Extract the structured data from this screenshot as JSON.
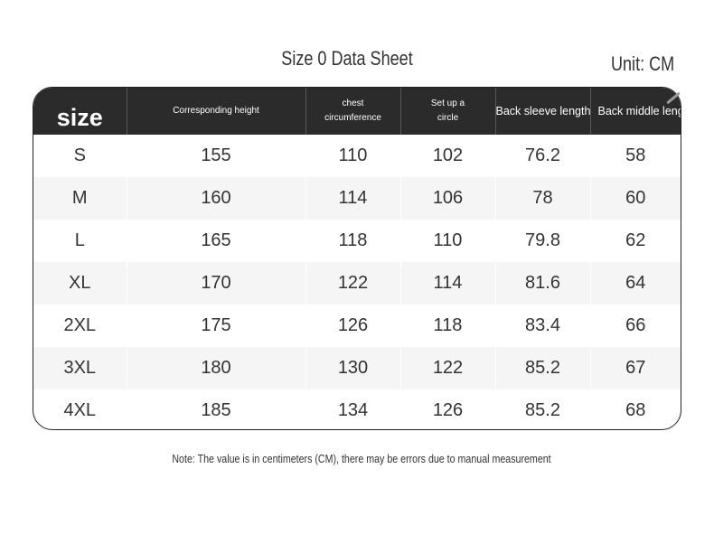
{
  "title": "Size 0 Data Sheet",
  "unit": "Unit: CM",
  "columns": [
    "size",
    "Corresponding height",
    "chest circumference",
    "Set up a circle",
    "Back sleeve length",
    "Back middle length"
  ],
  "rows": [
    [
      "S",
      "155",
      "110",
      "102",
      "76.2",
      "58"
    ],
    [
      "M",
      "160",
      "114",
      "106",
      "78",
      "60"
    ],
    [
      "L",
      "165",
      "118",
      "110",
      "79.8",
      "62"
    ],
    [
      "XL",
      "170",
      "122",
      "114",
      "81.6",
      "64"
    ],
    [
      "2XL",
      "175",
      "126",
      "118",
      "83.4",
      "66"
    ],
    [
      "3XL",
      "180",
      "130",
      "122",
      "85.2",
      "67"
    ],
    [
      "4XL",
      "185",
      "134",
      "126",
      "85.2",
      "68"
    ]
  ],
  "note": "Note: The value is in centimeters (CM), there may be errors due to manual measurement"
}
